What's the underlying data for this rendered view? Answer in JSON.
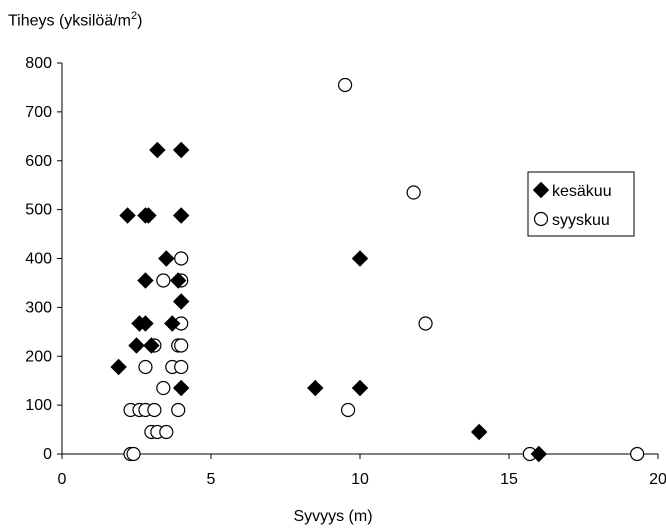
{
  "chart_data": {
    "type": "scatter",
    "title": "",
    "ylabel": "Tiheys (yksilöä/m",
    "ylabel_sup": "2",
    "ylabel_close": ")",
    "xlabel": "Syvyys (m)",
    "xlim": [
      0,
      20
    ],
    "ylim": [
      0,
      800
    ],
    "xticks": [
      0,
      5,
      10,
      15,
      20
    ],
    "yticks": [
      0,
      100,
      200,
      300,
      400,
      500,
      600,
      700,
      800
    ],
    "legend_position": "right",
    "series": [
      {
        "name": "kesäkuu",
        "marker": "diamond",
        "color": "#000000",
        "points": [
          [
            3.2,
            622
          ],
          [
            4.0,
            622
          ],
          [
            2.2,
            488
          ],
          [
            2.8,
            488
          ],
          [
            2.9,
            488
          ],
          [
            4.0,
            488
          ],
          [
            3.5,
            400
          ],
          [
            2.8,
            355
          ],
          [
            3.9,
            355
          ],
          [
            4.0,
            312
          ],
          [
            2.6,
            267
          ],
          [
            2.8,
            267
          ],
          [
            3.7,
            267
          ],
          [
            2.5,
            222
          ],
          [
            3.0,
            222
          ],
          [
            1.9,
            178
          ],
          [
            4.0,
            135
          ],
          [
            8.5,
            135
          ],
          [
            10.0,
            135
          ],
          [
            10.0,
            400
          ],
          [
            14.0,
            45
          ],
          [
            16.0,
            0
          ]
        ]
      },
      {
        "name": "syyskuu",
        "marker": "circle",
        "color": "#ffffff",
        "points": [
          [
            9.5,
            755
          ],
          [
            11.8,
            535
          ],
          [
            4.0,
            400
          ],
          [
            3.4,
            355
          ],
          [
            4.0,
            355
          ],
          [
            4.0,
            267
          ],
          [
            12.2,
            267
          ],
          [
            3.1,
            222
          ],
          [
            3.9,
            222
          ],
          [
            4.0,
            222
          ],
          [
            2.8,
            178
          ],
          [
            3.7,
            178
          ],
          [
            4.0,
            178
          ],
          [
            3.4,
            135
          ],
          [
            2.3,
            90
          ],
          [
            2.6,
            90
          ],
          [
            2.8,
            90
          ],
          [
            3.1,
            90
          ],
          [
            3.9,
            90
          ],
          [
            9.6,
            90
          ],
          [
            3.0,
            45
          ],
          [
            3.2,
            45
          ],
          [
            3.5,
            45
          ],
          [
            2.3,
            0
          ],
          [
            2.4,
            0
          ],
          [
            15.7,
            0
          ],
          [
            19.3,
            0
          ]
        ]
      }
    ]
  }
}
